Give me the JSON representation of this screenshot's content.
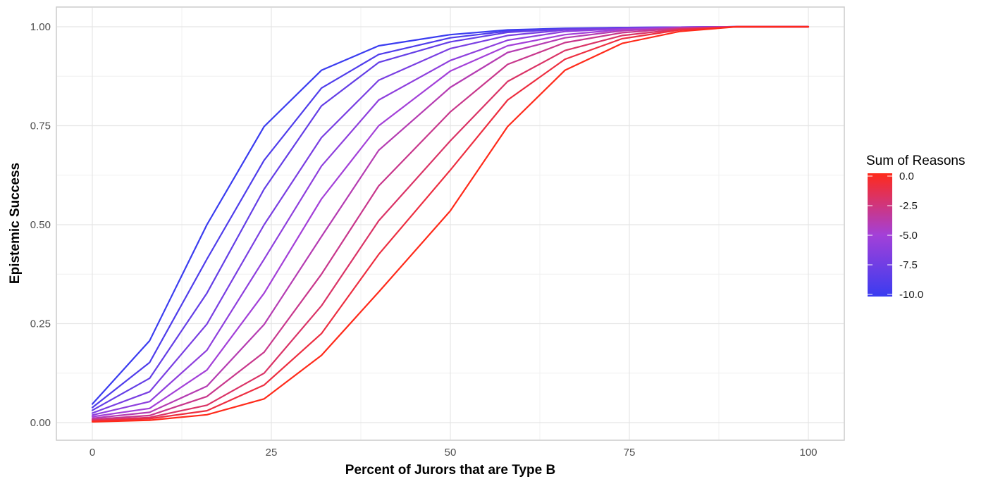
{
  "chart_data": {
    "type": "line",
    "xlabel": "Percent of Jurors that are Type B",
    "ylabel": "Epistemic Success",
    "xlim": [
      0,
      100
    ],
    "ylim": [
      0,
      1
    ],
    "x_ticks": [
      0,
      25,
      50,
      75,
      100
    ],
    "x_tick_labels": [
      "0",
      "25",
      "50",
      "75",
      "100"
    ],
    "y_ticks": [
      0,
      0.25,
      0.5,
      0.75,
      1
    ],
    "y_tick_labels": [
      "0.00",
      "0.25",
      "0.50",
      "0.75",
      "1.00"
    ],
    "grid": true,
    "x": [
      0,
      8,
      16,
      24,
      32,
      40,
      50,
      58,
      66,
      74,
      82,
      90,
      100
    ],
    "series": [
      {
        "color_value": -10,
        "values": [
          0.047,
          0.207,
          0.5,
          0.748,
          0.89,
          0.952,
          0.98,
          0.992,
          0.996,
          0.998,
          0.999,
          1.0,
          1.0
        ]
      },
      {
        "color_value": -9,
        "values": [
          0.038,
          0.152,
          0.413,
          0.663,
          0.845,
          0.93,
          0.972,
          0.989,
          0.995,
          0.998,
          0.999,
          1.0,
          1.0
        ]
      },
      {
        "color_value": -8,
        "values": [
          0.031,
          0.112,
          0.327,
          0.59,
          0.8,
          0.91,
          0.962,
          0.986,
          0.994,
          0.997,
          0.999,
          1.0,
          1.0
        ]
      },
      {
        "color_value": -7,
        "values": [
          0.024,
          0.078,
          0.249,
          0.5,
          0.72,
          0.865,
          0.945,
          0.978,
          0.992,
          0.996,
          0.999,
          1.0,
          1.0
        ]
      },
      {
        "color_value": -6,
        "values": [
          0.019,
          0.053,
          0.183,
          0.413,
          0.648,
          0.815,
          0.915,
          0.966,
          0.988,
          0.995,
          0.998,
          1.0,
          1.0
        ]
      },
      {
        "color_value": -5,
        "values": [
          0.015,
          0.036,
          0.133,
          0.327,
          0.565,
          0.75,
          0.888,
          0.952,
          0.98,
          0.993,
          0.998,
          1.0,
          1.0
        ]
      },
      {
        "color_value": -4,
        "values": [
          0.011,
          0.026,
          0.092,
          0.248,
          0.47,
          0.688,
          0.847,
          0.935,
          0.972,
          0.99,
          0.997,
          1.0,
          1.0
        ]
      },
      {
        "color_value": -3,
        "values": [
          0.008,
          0.018,
          0.066,
          0.178,
          0.375,
          0.598,
          0.785,
          0.905,
          0.96,
          0.985,
          0.996,
          1.0,
          1.0
        ]
      },
      {
        "color_value": -2,
        "values": [
          0.006,
          0.013,
          0.044,
          0.125,
          0.295,
          0.51,
          0.712,
          0.862,
          0.94,
          0.978,
          0.994,
          1.0,
          1.0
        ]
      },
      {
        "color_value": -1,
        "values": [
          0.004,
          0.01,
          0.03,
          0.095,
          0.225,
          0.425,
          0.638,
          0.815,
          0.918,
          0.97,
          0.992,
          1.0,
          1.0
        ]
      },
      {
        "color_value": 0,
        "values": [
          0.002,
          0.006,
          0.02,
          0.06,
          0.17,
          0.33,
          0.535,
          0.748,
          0.89,
          0.958,
          0.988,
          1.0,
          1.0
        ]
      }
    ],
    "legend": {
      "title": "Sum of Reasons",
      "position": "right",
      "range": [
        -10,
        0
      ],
      "ticks": [
        0,
        -2.5,
        -5,
        -7.5,
        -10
      ],
      "tick_labels": [
        "0.0",
        "-2.5",
        "-5.0",
        "-7.5",
        "-10.0"
      ],
      "color_low": "#3a3cf0",
      "color_mid": "#a340d8",
      "color_high": "#ff2a1a"
    }
  }
}
